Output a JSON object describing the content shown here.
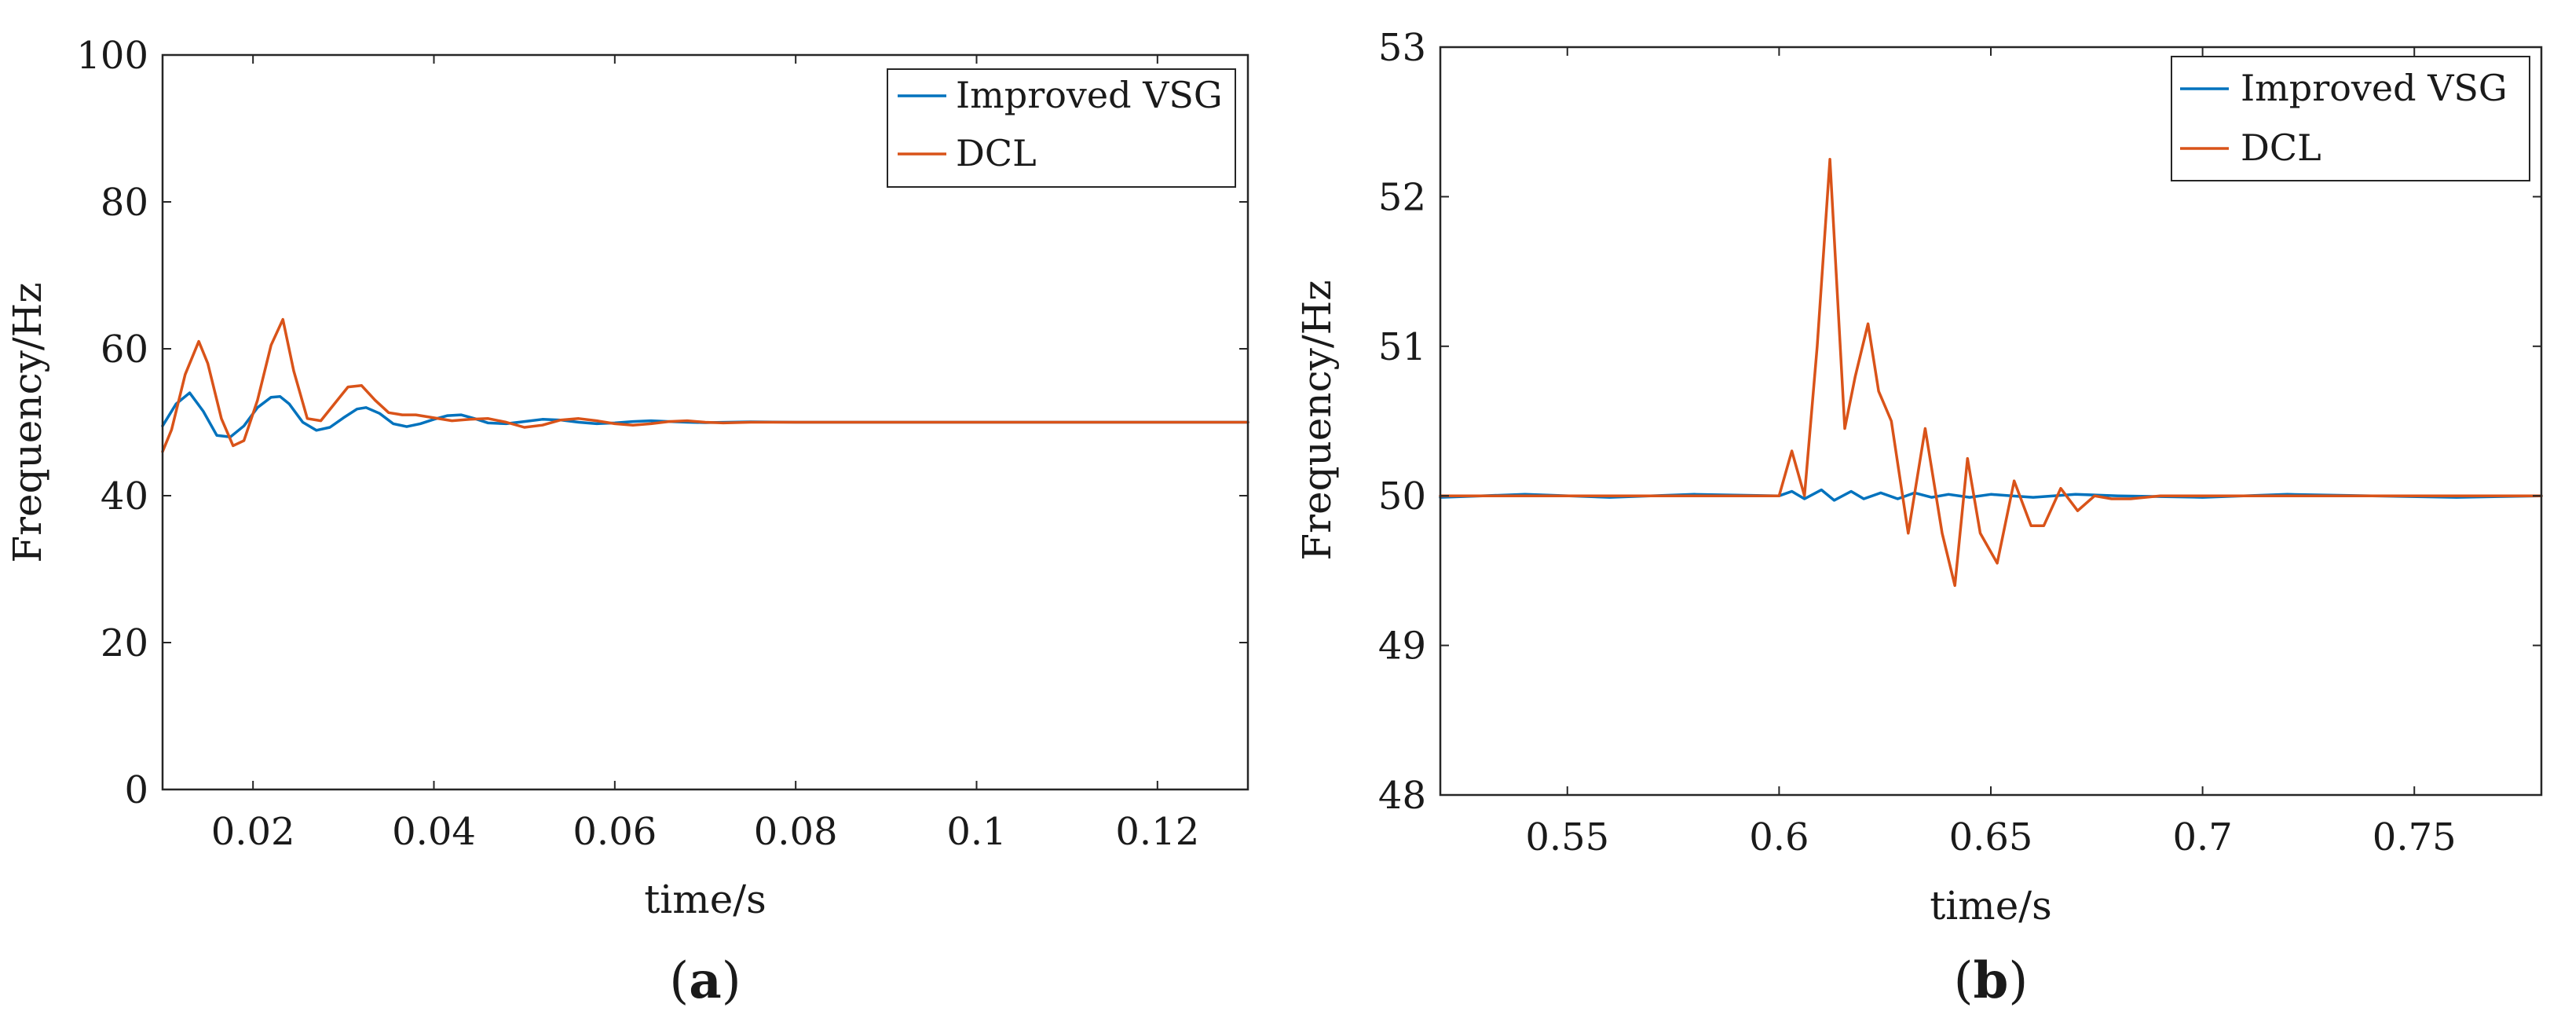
{
  "colors": {
    "improved_vsg": "#0072BD",
    "dcl": "#D95319",
    "axis": "#262626"
  },
  "chart_data": [
    {
      "type": "line",
      "panel_label": {
        "pre": "(",
        "letter": "a",
        "post": ")"
      },
      "xlabel": "time/s",
      "ylabel": "Frequency/Hz",
      "xlim": [
        0.01,
        0.13
      ],
      "ylim": [
        0,
        100
      ],
      "xticks": [
        0.02,
        0.04,
        0.06,
        0.08,
        0.1,
        0.12
      ],
      "xtick_labels": [
        "0.02",
        "0.04",
        "0.06",
        "0.08",
        "0.1",
        "0.12"
      ],
      "yticks": [
        0,
        20,
        40,
        60,
        80,
        100
      ],
      "ytick_labels": [
        "0",
        "20",
        "40",
        "60",
        "80",
        "100"
      ],
      "legend_position": "top-right",
      "series": [
        {
          "name": "Improved VSG",
          "color_key": "improved_vsg",
          "x": [
            0.01,
            0.0115,
            0.013,
            0.0145,
            0.016,
            0.0175,
            0.019,
            0.0205,
            0.022,
            0.023,
            0.024,
            0.0255,
            0.027,
            0.0285,
            0.03,
            0.0315,
            0.0325,
            0.034,
            0.0355,
            0.037,
            0.0385,
            0.04,
            0.0415,
            0.043,
            0.0445,
            0.046,
            0.048,
            0.05,
            0.052,
            0.054,
            0.056,
            0.058,
            0.06,
            0.062,
            0.064,
            0.066,
            0.068,
            0.07,
            0.075,
            0.08,
            0.085,
            0.09,
            0.1,
            0.11,
            0.12,
            0.13
          ],
          "y": [
            49.5,
            52.5,
            54.0,
            51.5,
            48.2,
            48.0,
            49.5,
            52.0,
            53.4,
            53.5,
            52.5,
            50.0,
            48.9,
            49.3,
            50.6,
            51.8,
            52.0,
            51.2,
            49.8,
            49.4,
            49.8,
            50.4,
            50.9,
            51.0,
            50.5,
            49.9,
            49.8,
            50.1,
            50.4,
            50.3,
            50.0,
            49.8,
            49.9,
            50.1,
            50.2,
            50.1,
            50.0,
            49.95,
            50.05,
            50.0,
            50.0,
            50.0,
            50.0,
            50.0,
            50.0,
            50.0
          ]
        },
        {
          "name": "DCL",
          "color_key": "dcl",
          "x": [
            0.01,
            0.011,
            0.0125,
            0.014,
            0.015,
            0.0165,
            0.0178,
            0.019,
            0.0205,
            0.022,
            0.0233,
            0.0245,
            0.026,
            0.0275,
            0.029,
            0.0305,
            0.032,
            0.0335,
            0.035,
            0.0365,
            0.038,
            0.04,
            0.042,
            0.044,
            0.046,
            0.048,
            0.05,
            0.052,
            0.054,
            0.056,
            0.058,
            0.06,
            0.062,
            0.064,
            0.066,
            0.068,
            0.07,
            0.072,
            0.075,
            0.08,
            0.085,
            0.09,
            0.1,
            0.11,
            0.12,
            0.13
          ],
          "y": [
            46.0,
            49.0,
            56.5,
            61.0,
            58.0,
            50.5,
            46.8,
            47.5,
            53.0,
            60.5,
            64.0,
            57.0,
            50.5,
            50.2,
            52.5,
            54.8,
            55.0,
            53.0,
            51.3,
            51.0,
            51.0,
            50.6,
            50.2,
            50.4,
            50.5,
            50.0,
            49.3,
            49.6,
            50.3,
            50.5,
            50.2,
            49.8,
            49.6,
            49.8,
            50.1,
            50.2,
            50.0,
            49.9,
            50.0,
            50.0,
            50.0,
            50.0,
            50.0,
            50.0,
            50.0,
            50.0
          ]
        }
      ]
    },
    {
      "type": "line",
      "panel_label": {
        "pre": "(",
        "letter": "b",
        "post": ")"
      },
      "xlabel": "time/s",
      "ylabel": "Frequency/Hz",
      "xlim": [
        0.52,
        0.78
      ],
      "ylim": [
        48,
        53
      ],
      "xticks": [
        0.55,
        0.6,
        0.65,
        0.7,
        0.75
      ],
      "xtick_labels": [
        "0.55",
        "0.6",
        "0.65",
        "0.7",
        "0.75"
      ],
      "yticks": [
        48,
        49,
        50,
        51,
        52,
        53
      ],
      "ytick_labels": [
        "48",
        "49",
        "50",
        "51",
        "52",
        "53"
      ],
      "legend_position": "top-right",
      "series": [
        {
          "name": "Improved VSG",
          "color_key": "improved_vsg",
          "x": [
            0.52,
            0.54,
            0.56,
            0.58,
            0.6,
            0.603,
            0.606,
            0.61,
            0.613,
            0.617,
            0.62,
            0.624,
            0.628,
            0.632,
            0.636,
            0.64,
            0.645,
            0.65,
            0.655,
            0.66,
            0.67,
            0.68,
            0.7,
            0.72,
            0.74,
            0.76,
            0.78
          ],
          "y": [
            49.99,
            50.01,
            49.99,
            50.01,
            50.0,
            50.03,
            49.98,
            50.04,
            49.97,
            50.03,
            49.98,
            50.02,
            49.98,
            50.02,
            49.99,
            50.01,
            49.99,
            50.01,
            50.0,
            49.99,
            50.01,
            50.0,
            49.99,
            50.01,
            50.0,
            49.99,
            50.0
          ]
        },
        {
          "name": "DCL",
          "color_key": "dcl",
          "x": [
            0.52,
            0.54,
            0.56,
            0.58,
            0.6,
            0.603,
            0.606,
            0.609,
            0.612,
            0.6155,
            0.618,
            0.621,
            0.6235,
            0.6265,
            0.6305,
            0.6345,
            0.6385,
            0.6415,
            0.6445,
            0.6475,
            0.6515,
            0.6555,
            0.6595,
            0.6625,
            0.6665,
            0.6705,
            0.6745,
            0.6785,
            0.683,
            0.69,
            0.7,
            0.72,
            0.74,
            0.76,
            0.78
          ],
          "y": [
            50.0,
            50.0,
            50.0,
            50.0,
            50.0,
            50.3,
            50.0,
            51.0,
            52.25,
            50.45,
            50.8,
            51.15,
            50.7,
            50.5,
            49.75,
            50.45,
            49.75,
            49.4,
            50.25,
            49.75,
            49.55,
            50.1,
            49.8,
            49.8,
            50.05,
            49.9,
            50.0,
            49.98,
            49.98,
            50.0,
            50.0,
            50.0,
            50.0,
            50.0,
            50.0
          ]
        }
      ]
    }
  ]
}
